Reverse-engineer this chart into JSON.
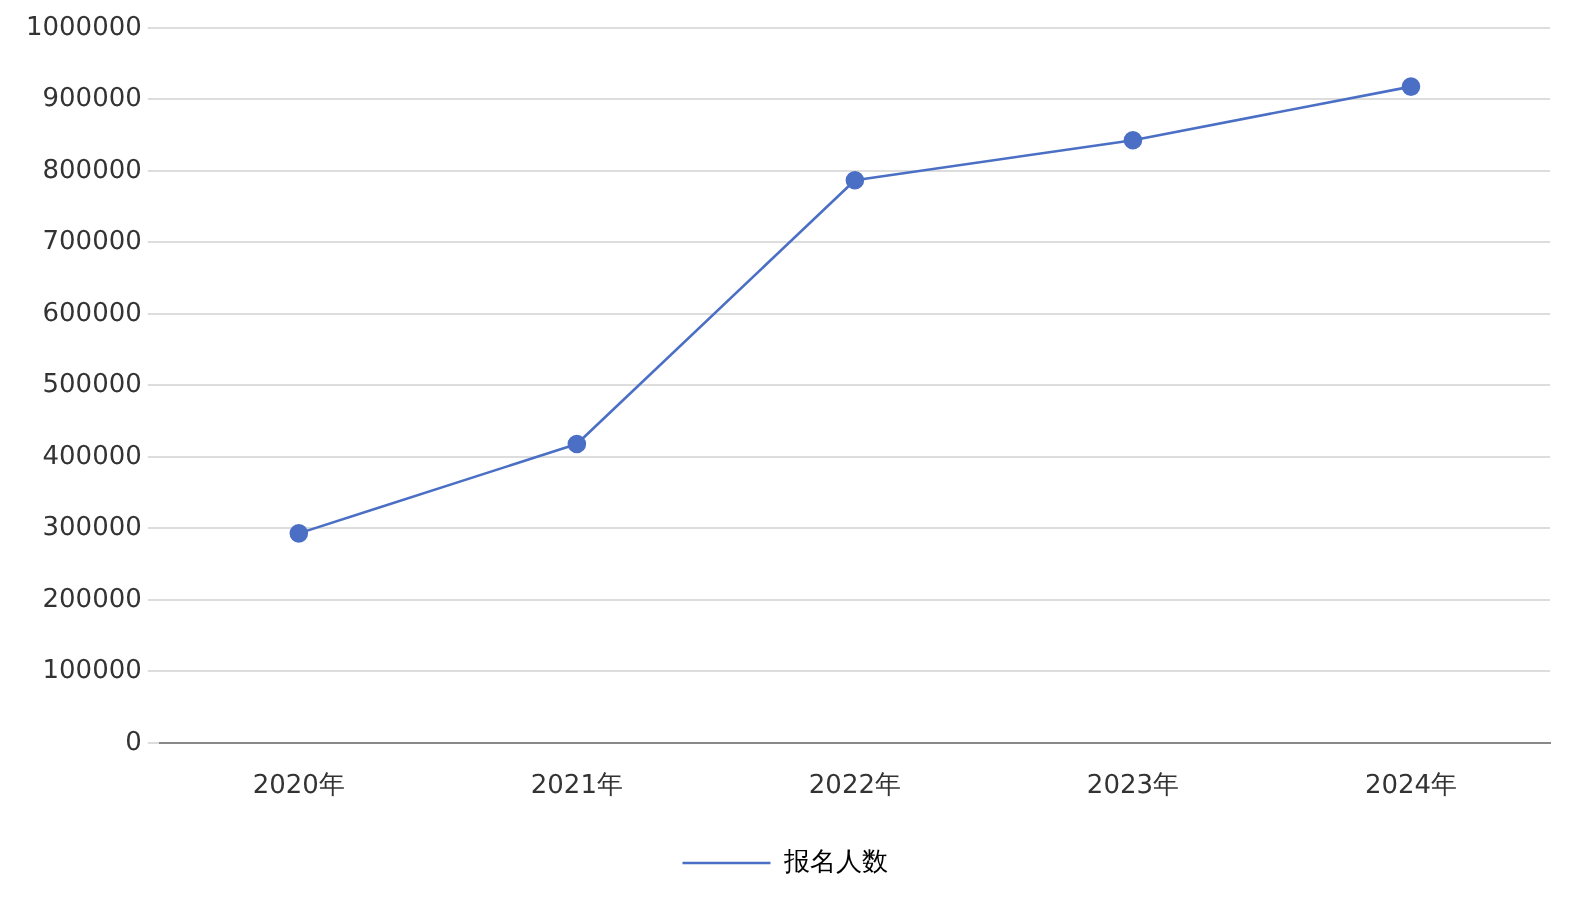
{
  "chart_data": {
    "type": "line",
    "categories": [
      "2020年",
      "2021年",
      "2022年",
      "2023年",
      "2024年"
    ],
    "series": [
      {
        "name": "报名人数",
        "color": "#4a6fc4",
        "values": [
          293000,
          418000,
          787000,
          843000,
          918000
        ]
      }
    ],
    "ylim": [
      0,
      1000000
    ],
    "yticks": [
      0,
      100000,
      200000,
      300000,
      400000,
      500000,
      600000,
      700000,
      800000,
      900000,
      1000000
    ],
    "grid": "y",
    "legend": "bottom",
    "marker": "circle",
    "line_style": "solid"
  }
}
